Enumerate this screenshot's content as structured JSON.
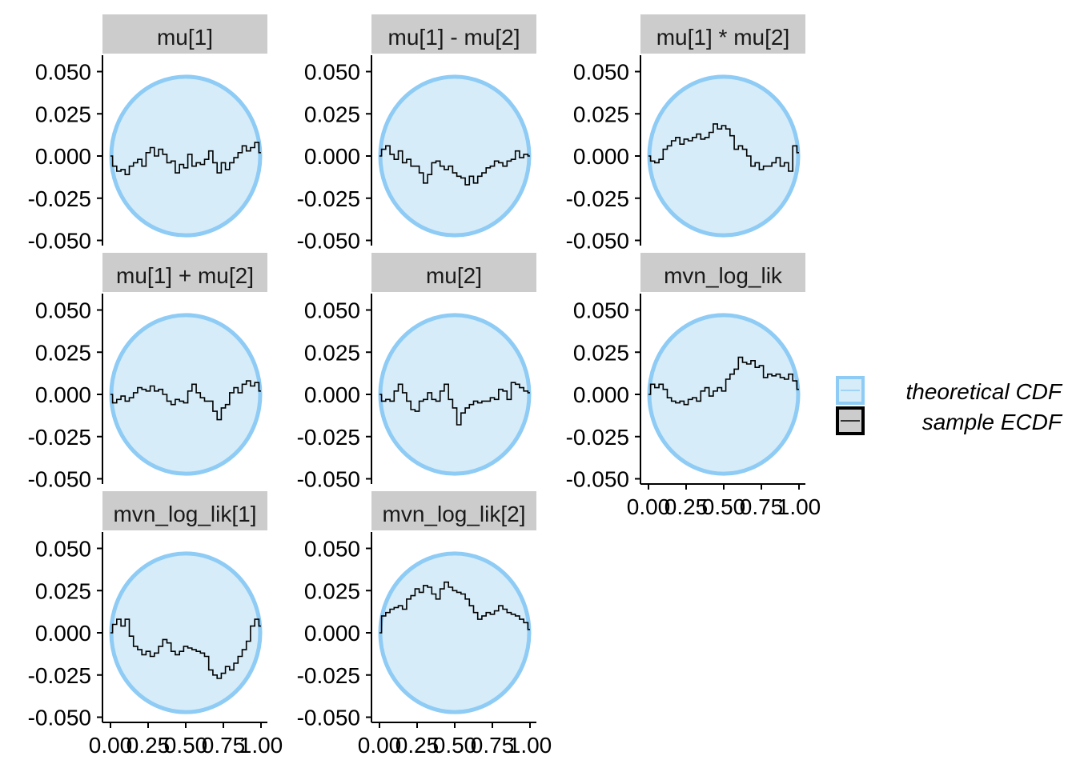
{
  "chart_data": {
    "type": "line",
    "title": "",
    "xlabel": "",
    "ylabel": "",
    "ylim": [
      -0.05,
      0.05
    ],
    "xlim": [
      0,
      1
    ],
    "y_ticks": [
      "0.050",
      "0.025",
      "0.000",
      "-0.025",
      "-0.050"
    ],
    "x_ticks": [
      "0.00",
      "0.25",
      "0.50",
      "0.75",
      "1.00"
    ],
    "band_halfwidth": 0.047,
    "legend": {
      "placement": "right",
      "items": [
        {
          "label": "theoretical CDF",
          "kind": "band",
          "fill": "#d6ecf8",
          "stroke": "#8ecbf5"
        },
        {
          "label": "sample ECDF",
          "kind": "line",
          "fill": "#cccccc",
          "stroke": "#000000"
        }
      ]
    },
    "colors": {
      "band_fill": "#d6ecf8",
      "band_stroke": "#8ecbf5",
      "line": "#000000",
      "strip": "#cccccc"
    },
    "panels": [
      {
        "title": "mu[1]",
        "x_axis_shown": false,
        "y": [
          0.0,
          -0.006,
          -0.009,
          -0.008,
          -0.011,
          -0.006,
          -0.004,
          -0.002,
          -0.006,
          0.002,
          0.005,
          0.0,
          0.004,
          0.001,
          -0.004,
          -0.003,
          -0.01,
          -0.005,
          -0.007,
          0.001,
          -0.006,
          -0.004,
          -0.005,
          -0.002,
          0.003,
          -0.004,
          -0.01,
          -0.004,
          -0.008,
          -0.004,
          -0.001,
          0.002,
          0.006,
          0.003,
          0.005,
          0.008,
          0.002
        ]
      },
      {
        "title": "mu[1] - mu[2]",
        "x_axis_shown": false,
        "y": [
          0.0,
          0.004,
          0.006,
          0.001,
          -0.002,
          0.003,
          -0.004,
          -0.002,
          -0.006,
          -0.006,
          -0.01,
          -0.016,
          -0.011,
          -0.004,
          -0.003,
          -0.006,
          -0.008,
          -0.006,
          -0.01,
          -0.012,
          -0.013,
          -0.017,
          -0.012,
          -0.016,
          -0.012,
          -0.01,
          -0.007,
          -0.006,
          -0.003,
          -0.004,
          -0.006,
          -0.003,
          -0.002,
          0.003,
          -0.001,
          0.001,
          0.0
        ]
      },
      {
        "title": "mu[1] * mu[2]",
        "x_axis_shown": false,
        "y": [
          0.0,
          -0.003,
          -0.004,
          -0.002,
          0.004,
          0.006,
          0.009,
          0.011,
          0.007,
          0.01,
          0.009,
          0.011,
          0.013,
          0.01,
          0.011,
          0.014,
          0.019,
          0.016,
          0.018,
          0.016,
          0.012,
          0.004,
          0.006,
          0.004,
          0.0,
          -0.006,
          -0.004,
          -0.008,
          -0.006,
          -0.006,
          -0.004,
          -0.001,
          -0.006,
          -0.004,
          -0.009,
          0.006,
          0.002
        ]
      },
      {
        "title": "mu[1] + mu[2]",
        "x_axis_shown": false,
        "y": [
          0.0,
          -0.005,
          -0.003,
          -0.001,
          -0.004,
          -0.002,
          0.001,
          0.004,
          0.003,
          0.002,
          0.005,
          0.002,
          0.003,
          0.0,
          -0.004,
          -0.006,
          -0.003,
          -0.004,
          -0.005,
          0.002,
          0.006,
          0.001,
          -0.002,
          -0.004,
          -0.004,
          -0.01,
          -0.015,
          -0.008,
          -0.006,
          0.001,
          0.004,
          0.001,
          0.006,
          0.008,
          0.005,
          0.007,
          0.002
        ]
      },
      {
        "title": "mu[2]",
        "x_axis_shown": false,
        "y": [
          0.0,
          -0.004,
          -0.003,
          -0.004,
          0.002,
          0.006,
          0.001,
          -0.004,
          -0.009,
          -0.01,
          -0.004,
          -0.003,
          0.001,
          -0.003,
          -0.004,
          0.002,
          0.006,
          -0.003,
          -0.008,
          -0.018,
          -0.011,
          -0.008,
          -0.006,
          -0.004,
          -0.005,
          -0.004,
          -0.004,
          -0.002,
          -0.003,
          0.003,
          0.002,
          -0.003,
          0.007,
          0.006,
          0.004,
          0.002,
          0.001
        ]
      },
      {
        "title": "mvn_log_lik",
        "x_axis_shown": true,
        "y": [
          0.0,
          0.006,
          0.004,
          0.006,
          0.003,
          -0.002,
          -0.004,
          -0.005,
          -0.004,
          -0.006,
          -0.003,
          -0.002,
          -0.004,
          0.002,
          0.004,
          -0.001,
          0.002,
          0.004,
          0.002,
          0.009,
          0.012,
          0.015,
          0.022,
          0.019,
          0.018,
          0.02,
          0.016,
          0.017,
          0.01,
          0.012,
          0.011,
          0.012,
          0.01,
          0.009,
          0.012,
          0.008,
          0.003
        ]
      },
      {
        "title": "mvn_log_lik[1]",
        "x_axis_shown": true,
        "y": [
          0.0,
          0.005,
          0.008,
          0.004,
          0.008,
          -0.002,
          -0.008,
          -0.01,
          -0.013,
          -0.011,
          -0.014,
          -0.012,
          -0.008,
          -0.004,
          -0.006,
          -0.011,
          -0.013,
          -0.011,
          -0.008,
          -0.009,
          -0.01,
          -0.011,
          -0.012,
          -0.014,
          -0.022,
          -0.025,
          -0.027,
          -0.024,
          -0.02,
          -0.022,
          -0.018,
          -0.014,
          -0.01,
          -0.005,
          0.004,
          0.008,
          0.004
        ]
      },
      {
        "title": "mvn_log_lik[2]",
        "x_axis_shown": true,
        "y": [
          0.0,
          0.01,
          0.012,
          0.014,
          0.015,
          0.016,
          0.014,
          0.02,
          0.022,
          0.026,
          0.024,
          0.028,
          0.027,
          0.023,
          0.02,
          0.026,
          0.03,
          0.027,
          0.025,
          0.024,
          0.023,
          0.02,
          0.016,
          0.012,
          0.008,
          0.01,
          0.012,
          0.011,
          0.013,
          0.016,
          0.014,
          0.012,
          0.011,
          0.01,
          0.008,
          0.006,
          0.002
        ]
      }
    ]
  }
}
